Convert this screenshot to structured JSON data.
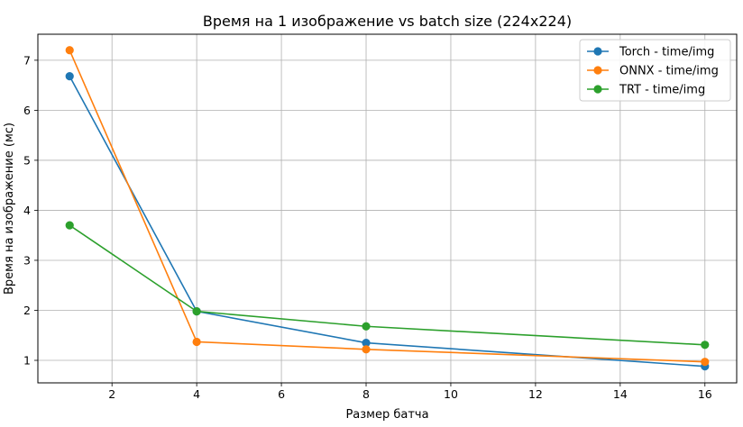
{
  "chart_data": {
    "type": "line",
    "title": "Время на 1 изображение vs batch size (224x224)",
    "xlabel": "Размер батча",
    "ylabel": "Время на изображение (мс)",
    "x": [
      1,
      4,
      8,
      16
    ],
    "xlim": [
      0.25,
      16.75
    ],
    "ylim": [
      0.55,
      7.52
    ],
    "xticks": [
      2,
      4,
      6,
      8,
      10,
      12,
      14,
      16
    ],
    "yticks": [
      1,
      2,
      3,
      4,
      5,
      6,
      7
    ],
    "grid": true,
    "legend_position": "top-right",
    "series": [
      {
        "name": "Torch - time/img",
        "color": "#1f77b4",
        "values": [
          6.68,
          1.98,
          1.35,
          0.88
        ]
      },
      {
        "name": "ONNX - time/img",
        "color": "#ff7f0e",
        "values": [
          7.2,
          1.37,
          1.22,
          0.97
        ]
      },
      {
        "name": "TRT - time/img",
        "color": "#2ca02c",
        "values": [
          3.7,
          1.98,
          1.68,
          1.31
        ]
      }
    ]
  }
}
